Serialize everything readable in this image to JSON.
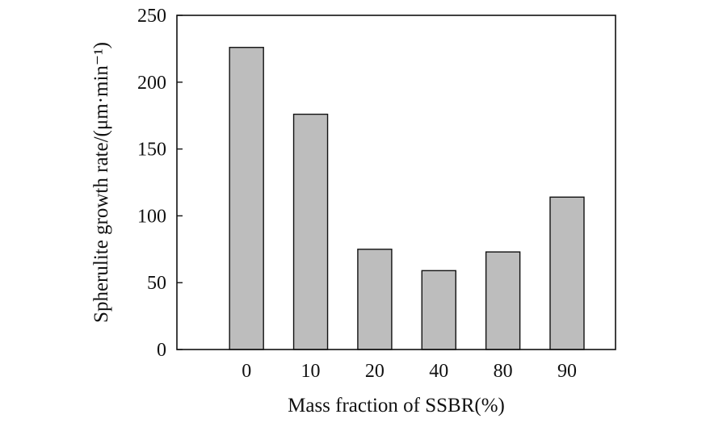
{
  "chart_data": {
    "type": "bar",
    "title": "",
    "xlabel": "Mass fraction of SSBR(%)",
    "ylabel": "Spherulite growth rate/(μm·min⁻¹)",
    "categories": [
      "0",
      "10",
      "20",
      "40",
      "80",
      "90"
    ],
    "values": [
      226,
      176,
      75,
      59,
      73,
      114
    ],
    "ylim": [
      0,
      250
    ],
    "yticks": [
      0,
      50,
      100,
      150,
      200,
      250
    ],
    "grid": false,
    "legend": "none",
    "bar_color": "#bdbdbd",
    "edge_color": "#111111"
  }
}
